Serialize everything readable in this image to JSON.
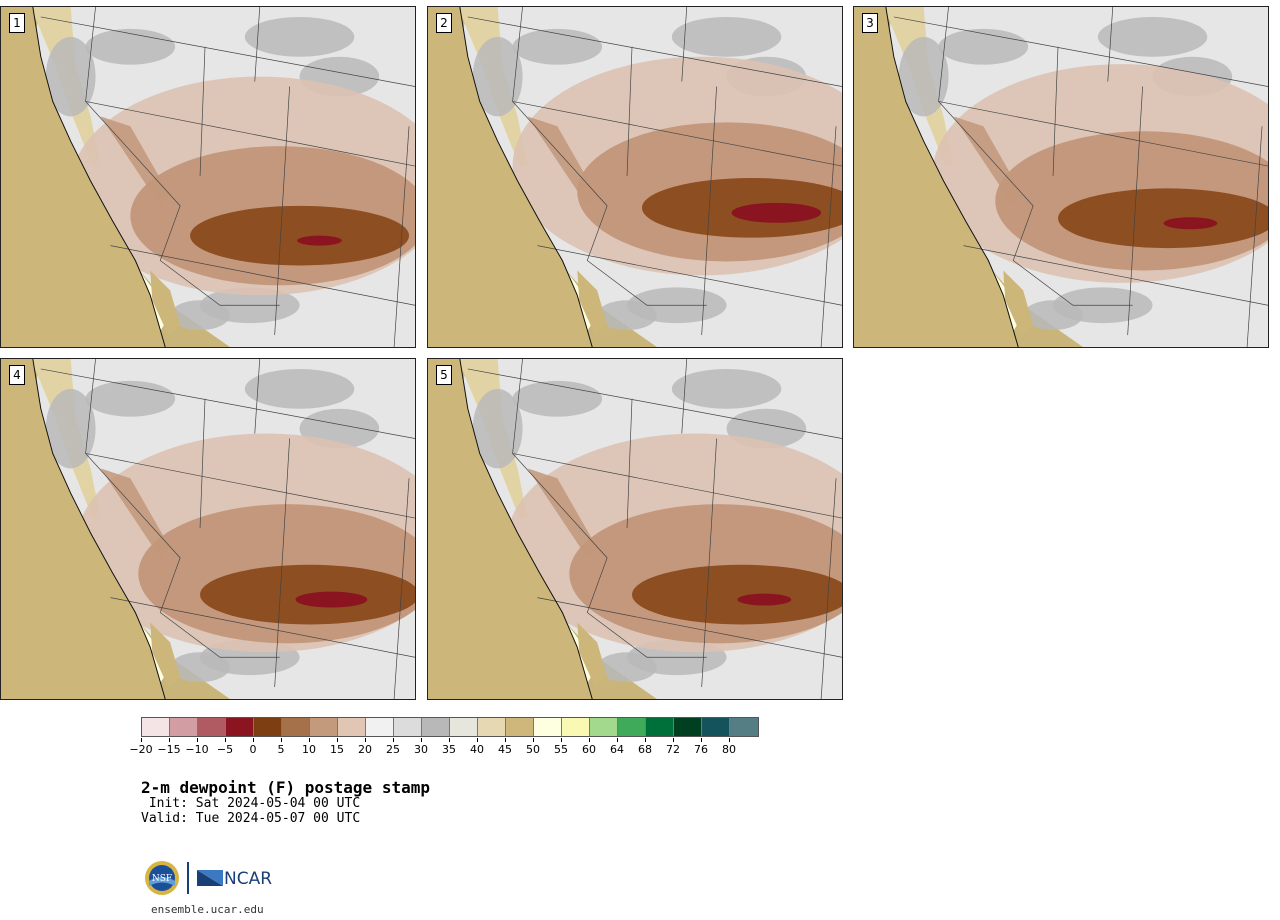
{
  "panels": [
    {
      "label": "1"
    },
    {
      "label": "2"
    },
    {
      "label": "3"
    },
    {
      "label": "4"
    },
    {
      "label": "5"
    }
  ],
  "colorbar": {
    "colors": [
      "#f5e4e6",
      "#d39ea3",
      "#b05a62",
      "#8a1420",
      "#7d3f12",
      "#a5714b",
      "#c49a7d",
      "#e2c6b4",
      "#f1f1f1",
      "#dcdcdc",
      "#b8b8b8",
      "#e6e6dc",
      "#e6d8b2",
      "#cfb77c",
      "#fefee0",
      "#f9f9b4",
      "#a3d98d",
      "#3faa5a",
      "#00703a",
      "#003f20",
      "#14535c",
      "#547e84"
    ],
    "tick_labels": [
      "−20",
      "−15",
      "−10",
      "−5",
      "0",
      "5",
      "10",
      "15",
      "20",
      "25",
      "30",
      "35",
      "40",
      "45",
      "50",
      "55",
      "60",
      "64",
      "68",
      "72",
      "76",
      "80"
    ]
  },
  "map_colors": {
    "ocean": "#cdb679",
    "desert_light": "#ffffe0",
    "gray_dark": "#b9b9b9",
    "gray_light": "#e6e6e6",
    "brown_light": "#dcc2b2",
    "brown_mid": "#c29679",
    "brown_dark": "#8a4a1c",
    "maroon": "#8a1420"
  },
  "caption": {
    "title": "2-m dewpoint (F) postage stamp",
    "init": " Init: Sat 2024-05-04 00 UTC",
    "valid": "Valid: Tue 2024-05-07 00 UTC"
  },
  "logos": {
    "nsf": "NSF",
    "ncar": "NCAR"
  },
  "footer": {
    "site": "ensemble.ucar.edu"
  }
}
